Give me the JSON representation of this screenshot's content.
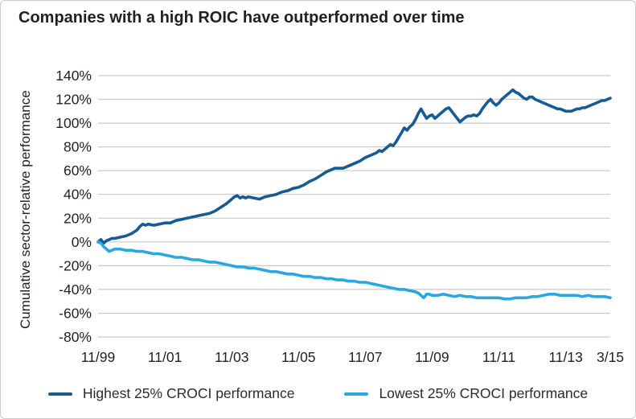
{
  "title": "Companies with a high ROIC have outperformed over time",
  "colors": {
    "highest_line": "#175B94",
    "lowest_line": "#2AA7E0",
    "text": "#231F20",
    "grid": "#C9C9C9",
    "card_border": "#CCCCCC"
  },
  "legend": [
    {
      "label": "Highest 25% CROCI performance"
    },
    {
      "label": "Lowest 25% CROCI performance"
    }
  ],
  "chart_data": {
    "type": "line",
    "title": "Companies with a high ROIC have outperformed over time",
    "xlabel": "",
    "ylabel": "Cumulative sector-relative performance",
    "x_unit": "months since 11/1999",
    "ylim": [
      -80,
      140
    ],
    "y_ticks": [
      140,
      120,
      100,
      80,
      60,
      40,
      20,
      0,
      -20,
      -40,
      -60,
      -80
    ],
    "y_tick_suffix": "%",
    "grid": "horizontal",
    "legend_position": "bottom",
    "x_ticks": [
      {
        "label": "11/99",
        "m": 0
      },
      {
        "label": "11/01",
        "m": 24
      },
      {
        "label": "11/03",
        "m": 48
      },
      {
        "label": "11/05",
        "m": 72
      },
      {
        "label": "11/07",
        "m": 96
      },
      {
        "label": "11/09",
        "m": 120
      },
      {
        "label": "11/11",
        "m": 144
      },
      {
        "label": "11/13",
        "m": 168
      },
      {
        "label": "3/15",
        "m": 184
      }
    ],
    "series": [
      {
        "key": "highest",
        "name": "Highest 25% CROCI performance",
        "color": "#175B94",
        "points": [
          [
            0,
            0
          ],
          [
            1,
            2
          ],
          [
            2,
            -1
          ],
          [
            3,
            1
          ],
          [
            4,
            2
          ],
          [
            5,
            3
          ],
          [
            6,
            3
          ],
          [
            8,
            4
          ],
          [
            10,
            5
          ],
          [
            12,
            7
          ],
          [
            14,
            10
          ],
          [
            15,
            13
          ],
          [
            16,
            15
          ],
          [
            17,
            14
          ],
          [
            18,
            15
          ],
          [
            20,
            14
          ],
          [
            22,
            15
          ],
          [
            24,
            16
          ],
          [
            26,
            16
          ],
          [
            28,
            18
          ],
          [
            30,
            19
          ],
          [
            32,
            20
          ],
          [
            34,
            21
          ],
          [
            36,
            22
          ],
          [
            38,
            23
          ],
          [
            40,
            24
          ],
          [
            42,
            26
          ],
          [
            44,
            29
          ],
          [
            46,
            32
          ],
          [
            48,
            36
          ],
          [
            49,
            38
          ],
          [
            50,
            39
          ],
          [
            51,
            37
          ],
          [
            52,
            38
          ],
          [
            53,
            37
          ],
          [
            54,
            38
          ],
          [
            56,
            37
          ],
          [
            58,
            36
          ],
          [
            60,
            38
          ],
          [
            62,
            39
          ],
          [
            64,
            40
          ],
          [
            66,
            42
          ],
          [
            68,
            43
          ],
          [
            70,
            45
          ],
          [
            72,
            46
          ],
          [
            74,
            48
          ],
          [
            76,
            51
          ],
          [
            78,
            53
          ],
          [
            80,
            56
          ],
          [
            82,
            59
          ],
          [
            84,
            61
          ],
          [
            85,
            62
          ],
          [
            86,
            62
          ],
          [
            88,
            62
          ],
          [
            90,
            64
          ],
          [
            92,
            66
          ],
          [
            94,
            68
          ],
          [
            96,
            71
          ],
          [
            98,
            73
          ],
          [
            100,
            75
          ],
          [
            101,
            77
          ],
          [
            102,
            76
          ],
          [
            103,
            78
          ],
          [
            104,
            80
          ],
          [
            105,
            82
          ],
          [
            106,
            81
          ],
          [
            107,
            84
          ],
          [
            108,
            88
          ],
          [
            109,
            92
          ],
          [
            110,
            96
          ],
          [
            111,
            94
          ],
          [
            112,
            97
          ],
          [
            113,
            99
          ],
          [
            114,
            103
          ],
          [
            115,
            108
          ],
          [
            116,
            112
          ],
          [
            117,
            108
          ],
          [
            118,
            104
          ],
          [
            119,
            106
          ],
          [
            120,
            107
          ],
          [
            121,
            104
          ],
          [
            122,
            106
          ],
          [
            123,
            108
          ],
          [
            124,
            110
          ],
          [
            125,
            112
          ],
          [
            126,
            113
          ],
          [
            127,
            110
          ],
          [
            128,
            107
          ],
          [
            129,
            104
          ],
          [
            130,
            101
          ],
          [
            131,
            103
          ],
          [
            132,
            105
          ],
          [
            133,
            106
          ],
          [
            134,
            106
          ],
          [
            135,
            107
          ],
          [
            136,
            106
          ],
          [
            137,
            108
          ],
          [
            138,
            112
          ],
          [
            139,
            115
          ],
          [
            140,
            118
          ],
          [
            141,
            120
          ],
          [
            142,
            117
          ],
          [
            143,
            115
          ],
          [
            144,
            117
          ],
          [
            145,
            120
          ],
          [
            146,
            122
          ],
          [
            147,
            124
          ],
          [
            148,
            126
          ],
          [
            149,
            128
          ],
          [
            150,
            126
          ],
          [
            151,
            125
          ],
          [
            152,
            123
          ],
          [
            153,
            121
          ],
          [
            154,
            120
          ],
          [
            155,
            122
          ],
          [
            156,
            122
          ],
          [
            157,
            120
          ],
          [
            158,
            119
          ],
          [
            159,
            118
          ],
          [
            160,
            117
          ],
          [
            161,
            116
          ],
          [
            162,
            115
          ],
          [
            163,
            114
          ],
          [
            164,
            113
          ],
          [
            165,
            112
          ],
          [
            166,
            112
          ],
          [
            167,
            111
          ],
          [
            168,
            110
          ],
          [
            169,
            110
          ],
          [
            170,
            110
          ],
          [
            171,
            111
          ],
          [
            172,
            112
          ],
          [
            173,
            112
          ],
          [
            174,
            113
          ],
          [
            175,
            113
          ],
          [
            176,
            114
          ],
          [
            177,
            115
          ],
          [
            178,
            116
          ],
          [
            179,
            117
          ],
          [
            180,
            118
          ],
          [
            181,
            119
          ],
          [
            182,
            119
          ],
          [
            183,
            120
          ],
          [
            184,
            121
          ]
        ]
      },
      {
        "key": "lowest",
        "name": "Lowest 25% CROCI performance",
        "color": "#2AA7E0",
        "points": [
          [
            0,
            0
          ],
          [
            1,
            -1
          ],
          [
            2,
            -4
          ],
          [
            3,
            -6
          ],
          [
            4,
            -8
          ],
          [
            5,
            -7
          ],
          [
            6,
            -6
          ],
          [
            8,
            -6
          ],
          [
            10,
            -7
          ],
          [
            12,
            -7
          ],
          [
            14,
            -8
          ],
          [
            16,
            -8
          ],
          [
            18,
            -9
          ],
          [
            20,
            -10
          ],
          [
            22,
            -10
          ],
          [
            24,
            -11
          ],
          [
            26,
            -12
          ],
          [
            28,
            -13
          ],
          [
            30,
            -13
          ],
          [
            32,
            -14
          ],
          [
            34,
            -15
          ],
          [
            36,
            -15
          ],
          [
            38,
            -16
          ],
          [
            40,
            -17
          ],
          [
            42,
            -17
          ],
          [
            44,
            -18
          ],
          [
            46,
            -19
          ],
          [
            48,
            -20
          ],
          [
            50,
            -21
          ],
          [
            52,
            -21
          ],
          [
            54,
            -22
          ],
          [
            56,
            -22
          ],
          [
            58,
            -23
          ],
          [
            60,
            -24
          ],
          [
            62,
            -25
          ],
          [
            64,
            -25
          ],
          [
            66,
            -26
          ],
          [
            68,
            -27
          ],
          [
            70,
            -27
          ],
          [
            72,
            -28
          ],
          [
            74,
            -29
          ],
          [
            76,
            -29
          ],
          [
            78,
            -30
          ],
          [
            80,
            -30
          ],
          [
            82,
            -31
          ],
          [
            84,
            -31
          ],
          [
            86,
            -32
          ],
          [
            88,
            -32
          ],
          [
            90,
            -33
          ],
          [
            92,
            -33
          ],
          [
            94,
            -34
          ],
          [
            96,
            -34
          ],
          [
            98,
            -35
          ],
          [
            100,
            -36
          ],
          [
            102,
            -37
          ],
          [
            104,
            -38
          ],
          [
            106,
            -39
          ],
          [
            108,
            -40
          ],
          [
            110,
            -40
          ],
          [
            112,
            -41
          ],
          [
            114,
            -42
          ],
          [
            115,
            -43
          ],
          [
            116,
            -45
          ],
          [
            117,
            -47
          ],
          [
            118,
            -44
          ],
          [
            119,
            -44
          ],
          [
            120,
            -45
          ],
          [
            122,
            -45
          ],
          [
            124,
            -44
          ],
          [
            126,
            -45
          ],
          [
            128,
            -46
          ],
          [
            130,
            -45
          ],
          [
            132,
            -46
          ],
          [
            134,
            -46
          ],
          [
            136,
            -47
          ],
          [
            138,
            -47
          ],
          [
            140,
            -47
          ],
          [
            142,
            -47
          ],
          [
            144,
            -47
          ],
          [
            146,
            -48
          ],
          [
            148,
            -48
          ],
          [
            150,
            -47
          ],
          [
            152,
            -47
          ],
          [
            154,
            -47
          ],
          [
            156,
            -46
          ],
          [
            158,
            -46
          ],
          [
            160,
            -45
          ],
          [
            162,
            -44
          ],
          [
            164,
            -44
          ],
          [
            166,
            -45
          ],
          [
            168,
            -45
          ],
          [
            170,
            -45
          ],
          [
            172,
            -45
          ],
          [
            174,
            -46
          ],
          [
            176,
            -45
          ],
          [
            178,
            -46
          ],
          [
            180,
            -46
          ],
          [
            182,
            -46
          ],
          [
            184,
            -47
          ]
        ]
      }
    ]
  }
}
